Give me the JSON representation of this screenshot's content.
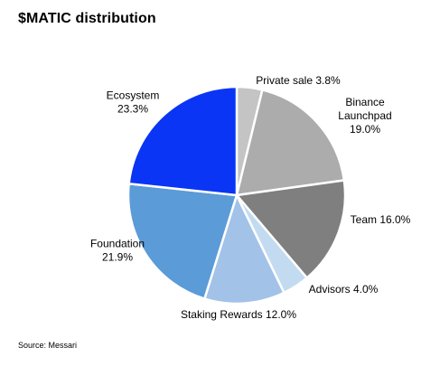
{
  "chart_data": {
    "type": "pie",
    "title": "$MATIC distribution",
    "source": "Source: Messari",
    "slices": [
      {
        "lines": [
          "Private sale 3.8%"
        ],
        "label": "Private sale",
        "value": 3.8,
        "color": "#c4c4c4"
      },
      {
        "lines": [
          "Binance",
          "Launchpad",
          "19.0%"
        ],
        "label": "Binance Launchpad",
        "value": 19.0,
        "color": "#acacac"
      },
      {
        "lines": [
          "Team 16.0%"
        ],
        "label": "Team",
        "value": 16.0,
        "color": "#7f7f7f"
      },
      {
        "lines": [
          "Advisors 4.0%"
        ],
        "label": "Advisors",
        "value": 4.0,
        "color": "#c2dbf0"
      },
      {
        "lines": [
          "Staking Rewards 12.0%"
        ],
        "label": "Staking Rewards",
        "value": 12.0,
        "color": "#a2c2e8"
      },
      {
        "lines": [
          "Foundation",
          "21.9%"
        ],
        "label": "Foundation",
        "value": 21.9,
        "color": "#5b9bd8"
      },
      {
        "lines": [
          "Ecosystem",
          "23.3%"
        ],
        "label": "Ecosystem",
        "value": 23.3,
        "color": "#0a35f5"
      }
    ]
  }
}
